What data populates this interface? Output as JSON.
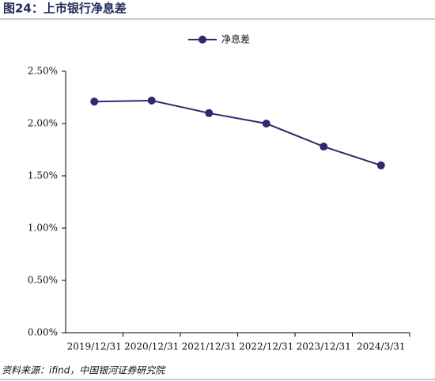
{
  "chart_data": {
    "type": "line",
    "title": "图24：上市银行净息差",
    "categories": [
      "2019/12/31",
      "2020/12/31",
      "2021/12/31",
      "2022/12/31",
      "2023/12/31",
      "2024/3/31"
    ],
    "series": [
      {
        "name": "净息差",
        "color": "#2b2a6f",
        "values": [
          2.21,
          2.22,
          2.1,
          2.0,
          1.78,
          1.6
        ]
      }
    ],
    "ylim": [
      0,
      2.5
    ],
    "yticks": [
      {
        "value": 0,
        "label": "0.00%"
      },
      {
        "value": 0.5,
        "label": "0.50%"
      },
      {
        "value": 1,
        "label": "1.00%"
      },
      {
        "value": 1.5,
        "label": "1.50%"
      },
      {
        "value": 2,
        "label": "2.00%"
      },
      {
        "value": 2.5,
        "label": "2.50%"
      }
    ],
    "legend": "top",
    "source": "资料来源：ifind，中国银河证券研究院"
  }
}
